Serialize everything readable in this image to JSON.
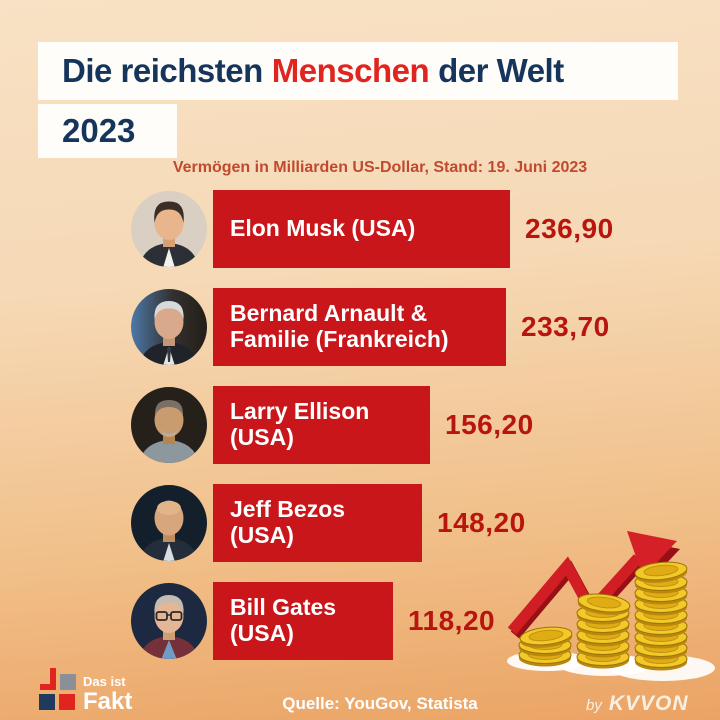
{
  "page": {
    "title": {
      "part1": "Die reichsten",
      "highlight": "Menschen",
      "part2": "der Welt",
      "year": "2023"
    },
    "subtitle": "Vermögen in Milliarden US-Dollar, Stand: 19. Juni 2023",
    "footer": {
      "brand_line1": "Das ist",
      "brand_line2": "Fakt",
      "source": "Quelle: YouGov, Statista",
      "credit_prefix": "by",
      "credit_name": "KVVON"
    }
  },
  "colors": {
    "background_top": "#f8e1c4",
    "background_bottom": "#eba364",
    "title_navy": "#16355c",
    "title_red": "#e0241f",
    "subtitle_red": "#c04a30",
    "bar_red": "#c9161a",
    "value_red": "#b8150f",
    "coin_gold": "#f3c829",
    "arrow_red": "#d11e24"
  },
  "icons": {
    "brand_logo": "das-ist-fakt-logo",
    "growth_arrow": "growth-arrow-icon",
    "coins": "coin-stacks-icon"
  },
  "chart_data": {
    "type": "bar",
    "orientation": "horizontal",
    "title": "Die reichsten Menschen der Welt 2023",
    "subtitle": "Vermögen in Milliarden US-Dollar, Stand: 19. Juni 2023",
    "unit": "Milliarden US-Dollar",
    "source": "Quelle: YouGov, Statista",
    "grid": false,
    "legend": false,
    "xlim": [
      0,
      250
    ],
    "categories": [
      "Elon Musk (USA)",
      "Bernard Arnault & Familie (Frankreich)",
      "Larry Ellison (USA)",
      "Jeff Bezos (USA)",
      "Bill Gates (USA)"
    ],
    "values": [
      236.9,
      233.7,
      156.2,
      148.2,
      118.2
    ],
    "rows": [
      {
        "line1": "Elon Musk (USA)",
        "line2": "",
        "value_label": "236,90",
        "avatar": "elon-musk-photo"
      },
      {
        "line1": "Bernard Arnault &",
        "line2": "Familie (Frankreich)",
        "value_label": "233,70",
        "avatar": "bernard-arnault-photo"
      },
      {
        "line1": "Larry Ellison",
        "line2": "(USA)",
        "value_label": "156,20",
        "avatar": "larry-ellison-photo"
      },
      {
        "line1": "Jeff Bezos",
        "line2": "(USA)",
        "value_label": "148,20",
        "avatar": "jeff-bezos-photo"
      },
      {
        "line1": "Bill Gates",
        "line2": "(USA)",
        "value_label": "118,20",
        "avatar": "bill-gates-photo"
      }
    ]
  }
}
